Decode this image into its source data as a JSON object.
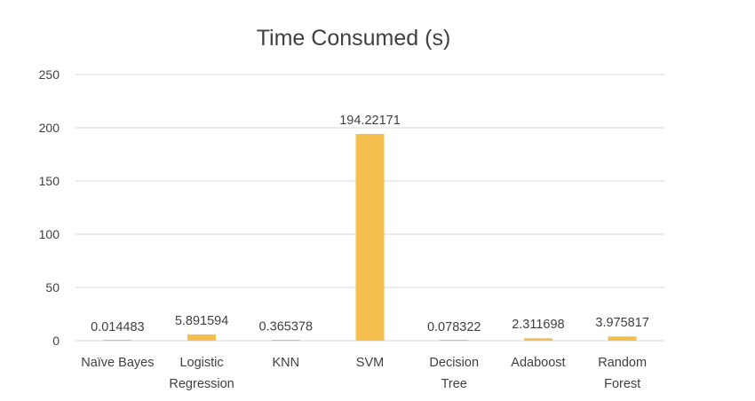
{
  "chart_data": {
    "type": "bar",
    "title": "Time Consumed (s)",
    "xlabel": "",
    "ylabel": "",
    "categories": [
      [
        "Naïve Bayes"
      ],
      [
        "Logistic",
        "Regression"
      ],
      [
        "KNN"
      ],
      [
        "SVM"
      ],
      [
        "Decision",
        "Tree"
      ],
      [
        "Adaboost"
      ],
      [
        "Random",
        "Forest"
      ]
    ],
    "values": [
      0.014483,
      5.891594,
      0.365378,
      194.22171,
      0.078322,
      2.311698,
      3.975817
    ],
    "value_labels": [
      "0.014483",
      "5.891594",
      "0.365378",
      "194.22171",
      "0.078322",
      "2.311698",
      "3.975817"
    ],
    "ylim": [
      0,
      250
    ],
    "yticks": [
      "0",
      "50",
      "100",
      "150",
      "200",
      "250"
    ],
    "grid": true,
    "legend": "none",
    "bar_color": "#F4BF4F"
  }
}
